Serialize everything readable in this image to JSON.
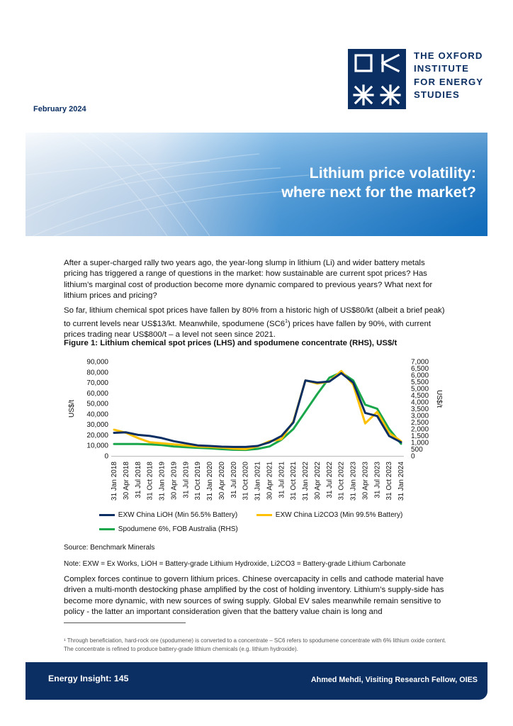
{
  "org": {
    "name_lines": [
      "THE OXFORD",
      "INSTITUTE",
      "FOR ENERGY",
      "STUDIES"
    ]
  },
  "date": "February 2024",
  "headline": {
    "line1": "Lithium price volatility:",
    "line2": "where next for the market?"
  },
  "body": {
    "para1": "After a super-charged rally two years ago, the year-long slump in lithium (Li) and wider battery metals pricing has triggered a range of questions in the market: how sustainable are current spot prices? Has lithium’s marginal cost of production become more dynamic compared to previous years? What next for lithium prices and pricing?",
    "para2_a": "So far, lithium chemical spot prices have fallen by 80% from a historic high of US$80/kt (albeit a brief peak) to current levels near US$13/kt. Meanwhile, spodumene (SC6",
    "para2_sup": "1",
    "para2_b": ") prices have fallen by 90%, with current prices trading near US$800/t – a level not seen since 2021.",
    "para3": "Complex forces continue to govern lithium prices. Chinese overcapacity in cells and cathode material have driven a multi-month destocking phase amplified by the cost of holding inventory. Lithium’s supply-side has become more dynamic, with new sources of swing supply. Global EV sales meanwhile remain sensitive to policy - the latter an important consideration given that the battery value chain is long and"
  },
  "figure": {
    "title": "Figure 1: Lithium chemical spot prices (LHS) and spodumene concentrate (RHS), US$/t",
    "source": "Source: Benchmark Minerals",
    "note": "Note: EXW = Ex Works, LiOH = Battery-grade Lithium Hydroxide, Li2CO3 = Battery-grade Lithium Carbonate"
  },
  "footnote": "¹ Through beneficiation, hard-rock ore (spodumene) is converted to a concentrate – SC6 refers to spodumene concentrate with 6% lithium oxide content. The concentrate is refined to produce battery-grade lithium chemicals (e.g. lithium hydroxide).",
  "footer": {
    "left": "Energy Insight: 145",
    "right": "Ahmed Mehdi, Visiting Research Fellow, OIES"
  },
  "colors": {
    "navy": "#0b2f63",
    "lioh": "#0b2f63",
    "li2co3": "#ffc000",
    "spodumene": "#1aa64a"
  },
  "chart_data": {
    "type": "line",
    "x": [
      "31 Jan 2018",
      "30 Apr 2018",
      "31 Jul 2018",
      "31 Oct 2018",
      "31 Jan 2019",
      "30 Apr 2019",
      "31 Jul 2019",
      "31 Oct 2019",
      "31 Jan 2020",
      "30 Apr 2020",
      "31 Jul 2020",
      "31 Oct 2020",
      "31 Jan 2021",
      "30 Apr 2021",
      "31 Jul 2021",
      "31 Oct 2021",
      "31 Jan 2022",
      "30 Apr 2022",
      "31 Jul 2022",
      "31 Oct 2022",
      "31 Jan 2023",
      "30 Apr 2023",
      "31 Jul 2023",
      "31 Oct 2023",
      "31 Jan 2024"
    ],
    "y_left": {
      "label": "US$/t",
      "ylim": [
        0,
        90000
      ],
      "ticks": [
        "90,000",
        "80,000",
        "70,000",
        "60,000",
        "50,000",
        "40,000",
        "30,000",
        "20,000",
        "10,000",
        "0"
      ]
    },
    "y_right": {
      "label": "US$/t",
      "ylim": [
        0,
        7000
      ],
      "ticks": [
        "7,000",
        "6,500",
        "6,000",
        "5,500",
        "5,000",
        "4,500",
        "4,000",
        "3,500",
        "3,000",
        "2,500",
        "2,000",
        "1,500",
        "1,000",
        "500",
        "0"
      ]
    },
    "series": [
      {
        "name": "EXW China LiOH (Min 56.5% Battery)",
        "axis": "left",
        "values": [
          22000,
          22500,
          20000,
          19000,
          17000,
          14000,
          12000,
          10000,
          9500,
          8800,
          8500,
          8500,
          9500,
          13000,
          19000,
          32000,
          72000,
          70000,
          71000,
          79000,
          70000,
          41000,
          38000,
          19000,
          13000
        ]
      },
      {
        "name": "EXW China Li2CO3 (Min 99.5% Battery)",
        "axis": "left",
        "values": [
          25000,
          22000,
          17000,
          13000,
          12000,
          11000,
          10000,
          9000,
          8500,
          8000,
          7000,
          6500,
          9000,
          14000,
          16000,
          33000,
          72000,
          69000,
          71000,
          81000,
          68000,
          31000,
          42000,
          22000,
          14000
        ]
      },
      {
        "name": "Spodumene 6%, FOB Australia (RHS)",
        "axis": "right",
        "values": [
          880,
          880,
          880,
          860,
          800,
          700,
          650,
          600,
          560,
          500,
          450,
          440,
          520,
          700,
          1200,
          2000,
          3300,
          4600,
          5800,
          6200,
          5600,
          3800,
          3500,
          2000,
          900
        ]
      }
    ],
    "grid": false,
    "legend": "bottom"
  }
}
